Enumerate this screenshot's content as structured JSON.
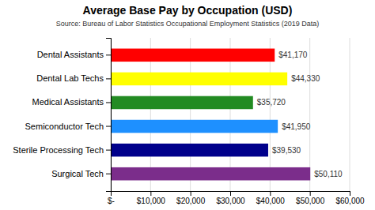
{
  "chart_data": {
    "type": "bar",
    "orientation": "horizontal",
    "title": "Average Base Pay by Occupation (USD)",
    "subtitle": "Source: Bureau of Labor Statistics Occupational Employment Statistics (2019 Data)",
    "categories": [
      "Surgical Tech",
      "Sterile Processing Tech",
      "Semiconductor Tech",
      "Medical Assistants",
      "Dental Lab Techs",
      "Dental Assistants"
    ],
    "values": [
      50110,
      39530,
      41950,
      35720,
      44330,
      41170
    ],
    "value_labels": [
      "$50,110",
      "$39,530",
      "$41,950",
      "$35,720",
      "$44,330",
      "$41,170"
    ],
    "data_labels": true,
    "colors": [
      "#7b2d8b",
      "#00008b",
      "#1e90ff",
      "#228b22",
      "#ffff00",
      "#ff0000"
    ],
    "xlim": [
      0,
      60000
    ],
    "xticks": [
      {
        "value": 0,
        "label": "$-"
      },
      {
        "value": 10000,
        "label": "$10,000"
      },
      {
        "value": 20000,
        "label": "$20,000"
      },
      {
        "value": 30000,
        "label": "$30,000"
      },
      {
        "value": 40000,
        "label": "$40,000"
      },
      {
        "value": 50000,
        "label": "$50,000"
      },
      {
        "value": 60000,
        "label": "$60,000"
      }
    ],
    "grid": true
  }
}
